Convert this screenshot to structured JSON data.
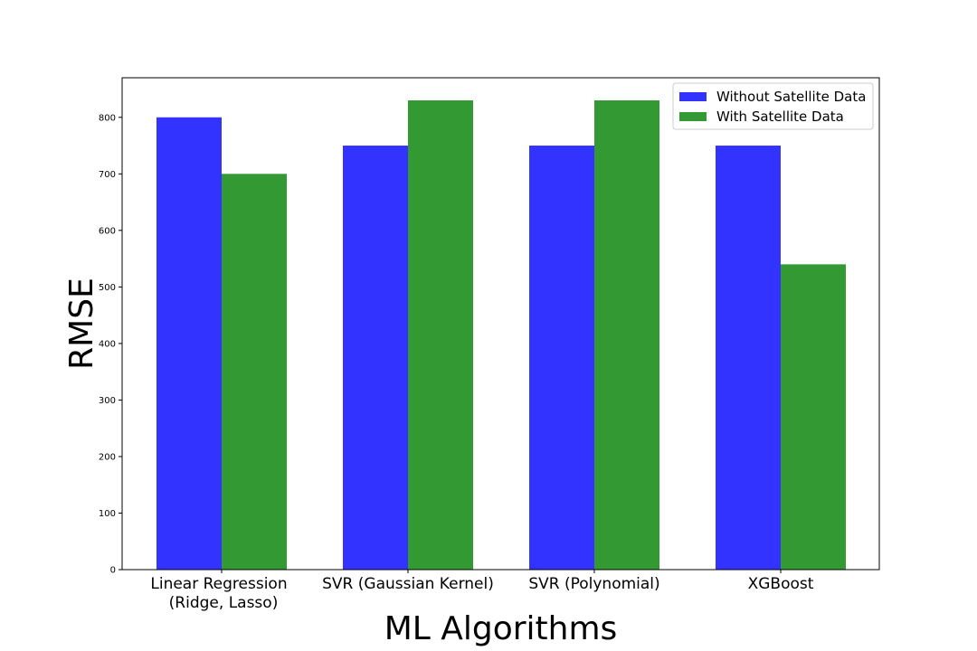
{
  "chart_data": {
    "type": "bar",
    "categories": [
      [
        "Linear Regression",
        "(Ridge, Lasso)"
      ],
      [
        "SVR (Gaussian Kernel)"
      ],
      [
        "SVR (Polynomial)"
      ],
      [
        "XGBoost"
      ]
    ],
    "series": [
      {
        "name": "Without Satellite Data",
        "color": "#3333ff",
        "values": [
          800,
          750,
          750,
          750
        ]
      },
      {
        "name": "With Satellite Data",
        "color": "#339933",
        "values": [
          700,
          830,
          830,
          540
        ]
      }
    ],
    "title": "",
    "xlabel": "ML Algorithms",
    "ylabel": "RMSE",
    "ylim": [
      0,
      870
    ],
    "yticks": [
      0,
      100,
      200,
      300,
      400,
      500,
      600,
      700,
      800
    ],
    "grid": false,
    "legend_position": "top-right"
  }
}
